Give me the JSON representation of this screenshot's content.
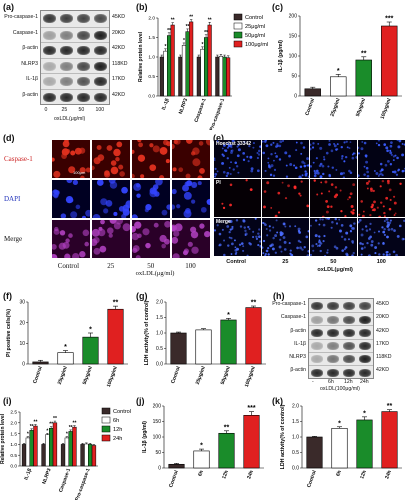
{
  "panels": [
    {
      "id": "a",
      "label": "(a)"
    },
    {
      "id": "b",
      "label": "(b)"
    },
    {
      "id": "c",
      "label": "(c)"
    },
    {
      "id": "d",
      "label": "(d)"
    },
    {
      "id": "e",
      "label": "(e)"
    },
    {
      "id": "f",
      "label": "(f)"
    },
    {
      "id": "g",
      "label": "(g)"
    },
    {
      "id": "h",
      "label": "(h)"
    },
    {
      "id": "i",
      "label": "(i)"
    },
    {
      "id": "j",
      "label": "(j)"
    },
    {
      "id": "k",
      "label": "(k)"
    }
  ],
  "blot_a": {
    "rows": [
      {
        "name": "Pro-caspase-1",
        "kd": "45KD",
        "intensity": [
          0.85,
          0.8,
          0.78,
          0.75
        ]
      },
      {
        "name": "Caspase-1",
        "kd": "20KD",
        "intensity": [
          0.35,
          0.5,
          0.75,
          0.95
        ]
      },
      {
        "name": "β-actin",
        "kd": "42KD",
        "intensity": [
          0.9,
          0.9,
          0.9,
          0.9
        ]
      },
      {
        "name": "NLRP3",
        "kd": "118KD",
        "intensity": [
          0.3,
          0.5,
          0.75,
          0.95
        ]
      },
      {
        "name": "IL-1β",
        "kd": "17KD",
        "intensity": [
          0.3,
          0.5,
          0.7,
          0.9
        ]
      },
      {
        "name": "β-actin",
        "kd": "42KD",
        "intensity": [
          0.9,
          0.9,
          0.9,
          0.9
        ]
      }
    ],
    "lanes": [
      "0",
      "25",
      "50",
      "100"
    ],
    "xlabel": "oxLDL(μg/ml)"
  },
  "blot_h": {
    "rows": [
      {
        "name": "Pro-caspase-1",
        "kd": "45KD",
        "intensity": [
          0.85,
          0.82,
          0.8,
          0.78
        ]
      },
      {
        "name": "Caspase-1",
        "kd": "20KD",
        "intensity": [
          0.35,
          0.55,
          0.75,
          0.95
        ]
      },
      {
        "name": "β-actin",
        "kd": "42KD",
        "intensity": [
          0.9,
          0.9,
          0.9,
          0.9
        ]
      },
      {
        "name": "IL-1β",
        "kd": "17KD",
        "intensity": [
          0.3,
          0.5,
          0.72,
          0.9
        ]
      },
      {
        "name": "NLRP3",
        "kd": "118KD",
        "intensity": [
          0.3,
          0.55,
          0.75,
          0.95
        ]
      },
      {
        "name": "β-actin",
        "kd": "42KD",
        "intensity": [
          0.9,
          0.9,
          0.9,
          0.9
        ]
      }
    ],
    "lanes": [
      "-",
      "6h",
      "12h",
      "24h"
    ],
    "xlabel": "oxLDL(100μg/ml)"
  },
  "micro_d": {
    "rows": [
      {
        "label": "Caspase-1",
        "color": "#cc2222",
        "tile": "#3a0000",
        "dot": "#e0301e"
      },
      {
        "label": "DAPI",
        "color": "#2233bb",
        "tile": "#000022",
        "dot": "#3344ff"
      },
      {
        "label": "Merge",
        "color": "#111111",
        "tile": "#2a0028",
        "dot": "#b040c0"
      }
    ],
    "cols": [
      "Control",
      "25",
      "50",
      "100"
    ],
    "scalebar": "100μm",
    "xlabel": "oxLDL(μg/ml)"
  },
  "micro_e": {
    "rows": [
      {
        "label": "Hoechst 33342",
        "tile": "#020214",
        "dot": "#3a5cff"
      },
      {
        "label": "PI",
        "tile": "#050005",
        "dot": "#ff2a2a"
      },
      {
        "label": "Merge",
        "tile": "#030318",
        "dot": "#4a6cff"
      }
    ],
    "cols": [
      "Control",
      "25",
      "50",
      "100"
    ],
    "xlabel": "oxLDL(μg/ml)"
  },
  "colors": {
    "control": "#3a2a2a",
    "white": "#ffffff",
    "green": "#1a8c2a",
    "red": "#e02020"
  },
  "chart_data": [
    {
      "id": "b",
      "type": "bar",
      "categories": [
        "IL-1β",
        "NLRP3",
        "Caspase-1",
        "Pro-caspase-1"
      ],
      "series": [
        {
          "name": "Control",
          "values": [
            1.0,
            1.0,
            1.0,
            1.0
          ],
          "err": [
            0.05,
            0.05,
            0.05,
            0.05
          ]
        },
        {
          "name": "25μg/ml",
          "values": [
            1.15,
            1.3,
            1.2,
            1.02
          ],
          "err": [
            0.06,
            0.06,
            0.06,
            0.05
          ]
        },
        {
          "name": "50μg/ml",
          "values": [
            1.55,
            1.65,
            1.5,
            1.0
          ],
          "err": [
            0.07,
            0.07,
            0.07,
            0.05
          ]
        },
        {
          "name": "100μg/ml",
          "values": [
            1.82,
            1.9,
            1.82,
            0.98
          ],
          "err": [
            0.06,
            0.06,
            0.07,
            0.05
          ]
        }
      ],
      "sig": [
        [
          "",
          "*",
          "**",
          "**"
        ],
        [
          "",
          "*",
          "**",
          "**"
        ],
        [
          "",
          "*",
          "**",
          "**"
        ],
        [
          "",
          "",
          "",
          ""
        ]
      ],
      "ylabel": "Relative protein level",
      "ylim": [
        0,
        2.0
      ],
      "yticks": [
        "0.0",
        "0.5",
        "1.0",
        "1.5",
        "2.0"
      ],
      "legend": [
        "Control",
        "25μg/ml",
        "50μg/ml",
        "100μg/ml"
      ]
    },
    {
      "id": "c",
      "type": "bar",
      "categories": [
        "Control",
        "25μg/ml",
        "50μg/ml",
        "100μg/ml"
      ],
      "values": [
        18,
        48,
        90,
        175
      ],
      "err": [
        4,
        6,
        8,
        10
      ],
      "sig": [
        "",
        "*",
        "**",
        "***"
      ],
      "ylabel": "IL-1β (pg/ml)",
      "ylim": [
        0,
        200
      ],
      "yticks": [
        "0",
        "50",
        "100",
        "150",
        "200"
      ]
    },
    {
      "id": "f",
      "type": "bar",
      "categories": [
        "Control",
        "25μg/ml",
        "50μg/ml",
        "100μg/ml"
      ],
      "values": [
        1.0,
        5.5,
        13,
        26.5
      ],
      "err": [
        0.8,
        1.0,
        2.0,
        1.5
      ],
      "sig": [
        "",
        "*",
        "*",
        "**"
      ],
      "ylabel": "PI positive cells(%)",
      "ylim": [
        0,
        30
      ],
      "yticks": [
        "0",
        "10",
        "20",
        "30"
      ]
    },
    {
      "id": "g",
      "type": "bar",
      "categories": [
        "Control",
        "25μg/ml",
        "50μg/ml",
        "100μg/ml"
      ],
      "values": [
        1.0,
        1.1,
        1.42,
        1.82
      ],
      "err": [
        0.03,
        0.04,
        0.05,
        0.05
      ],
      "sig": [
        "",
        "",
        "*",
        "**"
      ],
      "ylabel": "LDH activity(% of control)",
      "ylim": [
        0,
        2.0
      ],
      "yticks": [
        "0.0",
        "0.5",
        "1.0",
        "1.5",
        "2.0"
      ]
    },
    {
      "id": "i",
      "type": "bar",
      "categories": [
        "IL-1β",
        "NLRP3",
        "Caspase-1",
        "Pro-caspase-1"
      ],
      "series": [
        {
          "name": "Control",
          "values": [
            1.0,
            1.0,
            1.0,
            1.0
          ],
          "err": [
            0.05,
            0.05,
            0.05,
            0.05
          ]
        },
        {
          "name": "6h",
          "values": [
            1.3,
            1.45,
            1.3,
            1.02
          ],
          "err": [
            0.06,
            0.06,
            0.06,
            0.05
          ]
        },
        {
          "name": "12h",
          "values": [
            1.65,
            1.75,
            1.6,
            1.0
          ],
          "err": [
            0.07,
            0.07,
            0.07,
            0.05
          ]
        },
        {
          "name": "24h",
          "values": [
            1.85,
            2.0,
            1.8,
            0.95
          ],
          "err": [
            0.07,
            0.08,
            0.07,
            0.05
          ]
        }
      ],
      "sig": [
        [
          "",
          "*",
          "**",
          "**"
        ],
        [
          "",
          "*",
          "**",
          "**"
        ],
        [
          "",
          "*",
          "**",
          "**"
        ],
        [
          "",
          "",
          "",
          ""
        ]
      ],
      "ylabel": "Relative protein level",
      "ylim": [
        0,
        2.5
      ],
      "yticks": [
        "0.0",
        "0.5",
        "1.0",
        "1.5",
        "2.0",
        "2.5"
      ],
      "legend": [
        "Control",
        "6h",
        "12h",
        "24h"
      ]
    },
    {
      "id": "j",
      "type": "bar",
      "categories": [
        "Control",
        "6h",
        "12h",
        "24h"
      ],
      "values": [
        12,
        55,
        112,
        170
      ],
      "err": [
        3,
        6,
        8,
        12
      ],
      "sig": [
        "",
        "*",
        "**",
        "***"
      ],
      "ylabel": "IL-1β (pg/ml)",
      "ylim": [
        0,
        200
      ],
      "yticks": [
        "0",
        "50",
        "100",
        "150",
        "200"
      ]
    },
    {
      "id": "k",
      "type": "bar",
      "categories": [
        "Control",
        "6h",
        "12h",
        "24h"
      ],
      "values": [
        1.0,
        1.28,
        1.55,
        1.82
      ],
      "err": [
        0.02,
        0.05,
        0.1,
        0.06
      ],
      "sig": [
        "",
        "*",
        "*",
        "**"
      ],
      "ylabel": "LDH activity(% of control)",
      "ylim": [
        0,
        2.0
      ],
      "yticks": [
        "0.0",
        "0.5",
        "1.0",
        "1.5",
        "2.0"
      ]
    }
  ]
}
